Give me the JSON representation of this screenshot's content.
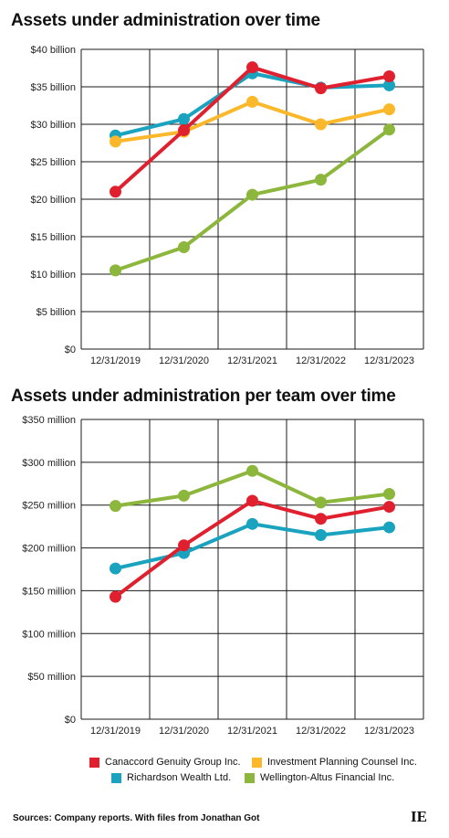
{
  "chart_data": [
    {
      "type": "line",
      "title": "Assets under administration over time",
      "categories": [
        "12/31/2019",
        "12/31/2020",
        "12/31/2021",
        "12/31/2022",
        "12/31/2023"
      ],
      "ylim": [
        0,
        40
      ],
      "yticks": [
        0,
        5,
        10,
        15,
        20,
        25,
        30,
        35,
        40
      ],
      "ytick_labels": [
        "$0",
        "$5 billion",
        "$10 billion",
        "$15 billion",
        "$20 billion",
        "$25 billion",
        "$30 billion",
        "$35 billion",
        "$40 billion"
      ],
      "grid": true,
      "series": [
        {
          "name": "Richardson Wealth Ltd.",
          "color": "#1aa3bf",
          "values": [
            28.5,
            30.7,
            36.8,
            34.9,
            35.2
          ]
        },
        {
          "name": "Investment Planning Counsel Inc.",
          "color": "#fbb82a",
          "values": [
            27.7,
            29.0,
            33.0,
            30.0,
            32.0
          ]
        },
        {
          "name": "Canaccord Genuity Group Inc.",
          "color": "#e0202e",
          "values": [
            21.0,
            29.2,
            37.6,
            34.8,
            36.4
          ]
        },
        {
          "name": "Wellington-Altus Financial Inc.",
          "color": "#8cb63c",
          "values": [
            10.5,
            13.6,
            20.6,
            22.6,
            29.3
          ]
        }
      ]
    },
    {
      "type": "line",
      "title": "Assets under administration per team over time",
      "categories": [
        "12/31/2019",
        "12/31/2020",
        "12/31/2021",
        "12/31/2022",
        "12/31/2023"
      ],
      "ylim": [
        0,
        350
      ],
      "yticks": [
        0,
        50,
        100,
        150,
        200,
        250,
        300,
        350
      ],
      "ytick_labels": [
        "$0",
        "$50 million",
        "$100 million",
        "$150 million",
        "$200 million",
        "$250 million",
        "$300 million",
        "$350 million"
      ],
      "grid": true,
      "series": [
        {
          "name": "Wellington-Altus Financial Inc.",
          "color": "#8cb63c",
          "values": [
            249,
            261,
            290,
            253,
            263
          ]
        },
        {
          "name": "Richardson Wealth Ltd.",
          "color": "#1aa3bf",
          "values": [
            176,
            194,
            228,
            215,
            224
          ]
        },
        {
          "name": "Canaccord Genuity Group Inc.",
          "color": "#e0202e",
          "values": [
            143,
            203,
            255,
            234,
            248
          ]
        }
      ]
    }
  ],
  "legend": [
    {
      "name": "Canaccord Genuity Group Inc.",
      "color": "#e0202e"
    },
    {
      "name": "Investment Planning Counsel Inc.",
      "color": "#fbb82a"
    },
    {
      "name": "Richardson Wealth Ltd.",
      "color": "#1aa3bf"
    },
    {
      "name": "Wellington-Altus Financial Inc.",
      "color": "#8cb63c"
    }
  ],
  "footer": {
    "sources": "Sources: Company reports. With files from Jonathan Got",
    "logo": "IE"
  }
}
